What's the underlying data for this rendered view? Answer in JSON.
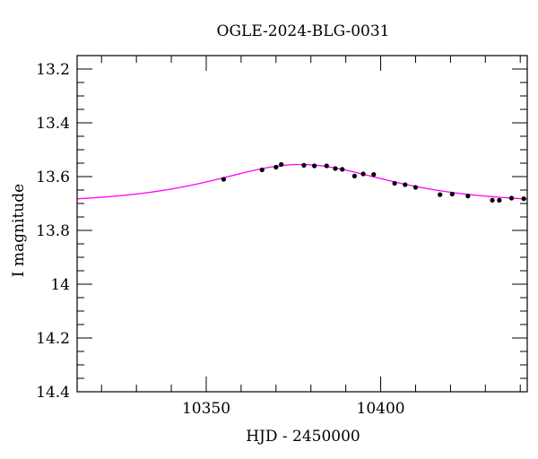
{
  "colors": {
    "model_curve": "#ff00ff",
    "points": "#000000",
    "axes": "#000000",
    "background": "#ffffff"
  },
  "chart_data": {
    "type": "scatter",
    "title": "OGLE-2024-BLG-0031",
    "xlabel": "HJD - 2450000",
    "ylabel": "I magnitude",
    "xlim": [
      10313,
      10442
    ],
    "ylim": [
      14.4,
      13.15
    ],
    "y_inverted": true,
    "grid": false,
    "x_major_ticks": [
      10350,
      10400
    ],
    "x_tick_labels": [
      "10350",
      "10400"
    ],
    "x_minor_step": 10,
    "y_major_ticks": [
      13.2,
      13.4,
      13.6,
      13.8,
      14,
      14.2,
      14.4
    ],
    "y_tick_labels": [
      "13.2",
      "13.4",
      "13.6",
      "13.8",
      "14",
      "14.2",
      "14.4"
    ],
    "y_minor_step": 0.05,
    "series": [
      {
        "name": "observations",
        "type": "scatter",
        "x": [
          10355,
          10366,
          10370,
          10371.5,
          10378,
          10381,
          10384.5,
          10387,
          10389,
          10392.5,
          10395,
          10398,
          10404,
          10407,
          10410,
          10417,
          10420.5,
          10425,
          10432,
          10434,
          10437.5,
          10441
        ],
        "y": [
          13.61,
          13.575,
          13.565,
          13.555,
          13.558,
          13.56,
          13.56,
          13.57,
          13.573,
          13.598,
          13.59,
          13.592,
          13.625,
          13.63,
          13.64,
          13.667,
          13.665,
          13.672,
          13.688,
          13.688,
          13.68,
          13.682
        ]
      },
      {
        "name": "model",
        "type": "line",
        "baseline": 13.7,
        "peak_mag": 13.555,
        "t0": 10377,
        "tE": 24
      }
    ]
  }
}
